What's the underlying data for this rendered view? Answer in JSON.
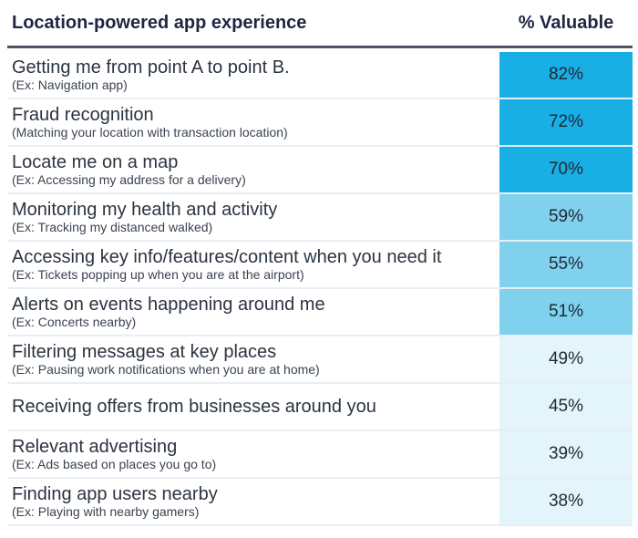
{
  "header": {
    "left": "Location-powered app experience",
    "right": "% Valuable"
  },
  "colors": {
    "high": "#19aee4",
    "mid": "#7fd1ee",
    "low": "#e3f4fb"
  },
  "rows": [
    {
      "title": "Getting me from point A to point B.",
      "sub": "(Ex: Navigation app)",
      "value": "82%",
      "tier": "high"
    },
    {
      "title": "Fraud recognition",
      "sub": "(Matching your location with transaction location)",
      "value": "72%",
      "tier": "high"
    },
    {
      "title": "Locate me on a map",
      "sub": "(Ex: Accessing my address for a delivery)",
      "value": "70%",
      "tier": "high"
    },
    {
      "title": "Monitoring my health and activity",
      "sub": "(Ex: Tracking my distanced walked)",
      "value": "59%",
      "tier": "mid"
    },
    {
      "title": "Accessing key info/features/content when you need it",
      "sub": "(Ex: Tickets popping up when you are at the airport)",
      "value": "55%",
      "tier": "mid"
    },
    {
      "title": "Alerts on events happening around me",
      "sub": "(Ex: Concerts nearby)",
      "value": "51%",
      "tier": "mid"
    },
    {
      "title": "Filtering messages at key places",
      "sub": "(Ex: Pausing work notifications when you are at home)",
      "value": "49%",
      "tier": "low"
    },
    {
      "title": "Receiving offers from businesses around you",
      "sub": "",
      "value": "45%",
      "tier": "low"
    },
    {
      "title": "Relevant advertising",
      "sub": "(Ex: Ads based on places you go to)",
      "value": "39%",
      "tier": "low"
    },
    {
      "title": "Finding app users nearby",
      "sub": "(Ex: Playing with nearby gamers)",
      "value": "38%",
      "tier": "low"
    }
  ]
}
